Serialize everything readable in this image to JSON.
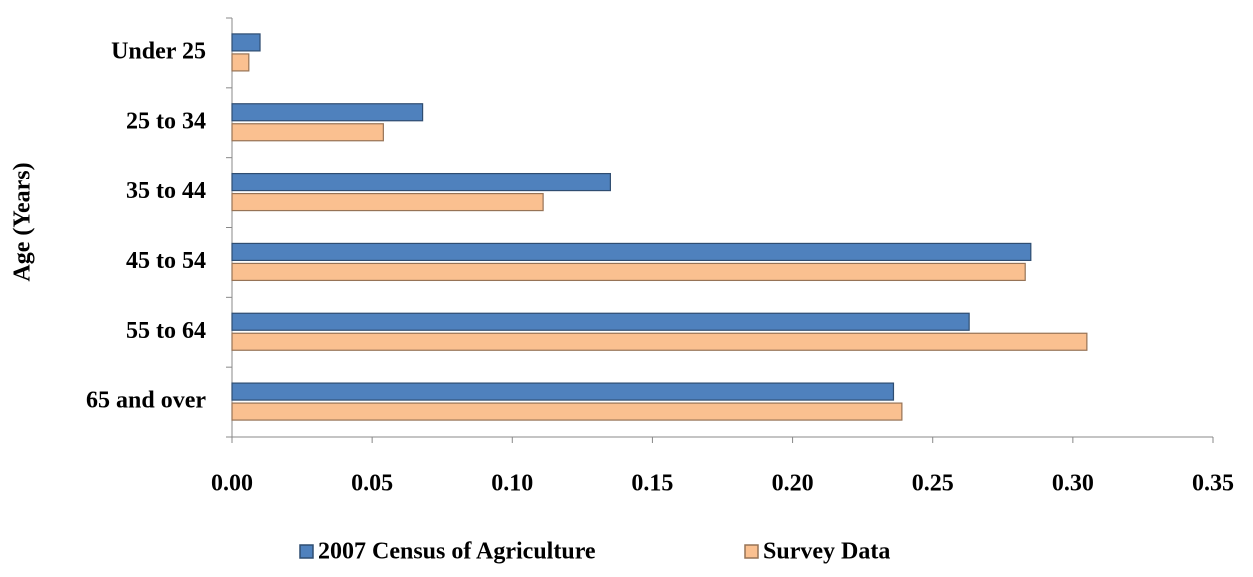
{
  "chart_data": {
    "type": "hbar",
    "y_label": "Age (Years)",
    "categories": [
      "Under 25",
      "25 to 34",
      "35 to 44",
      "45 to 54",
      "55 to 64",
      "65 and over"
    ],
    "series": [
      {
        "name": "2007 Census of Agriculture",
        "color": "#4f81bd",
        "values": [
          0.01,
          0.068,
          0.135,
          0.285,
          0.263,
          0.236
        ]
      },
      {
        "name": "Survey Data",
        "color": "#fac090",
        "values": [
          0.006,
          0.054,
          0.111,
          0.283,
          0.305,
          0.239
        ]
      }
    ],
    "xlim": [
      0,
      0.35
    ],
    "xticks": [
      {
        "value": 0,
        "label": "0.00"
      },
      {
        "value": 0.05,
        "label": "0.05"
      },
      {
        "value": 0.1,
        "label": "0.10"
      },
      {
        "value": 0.15,
        "label": "0.15"
      },
      {
        "value": 0.2,
        "label": "0.20"
      },
      {
        "value": 0.25,
        "label": "0.25"
      },
      {
        "value": 0.3,
        "label": "0.30"
      },
      {
        "value": 0.35,
        "label": "0.35"
      }
    ],
    "legend": "bottom"
  }
}
